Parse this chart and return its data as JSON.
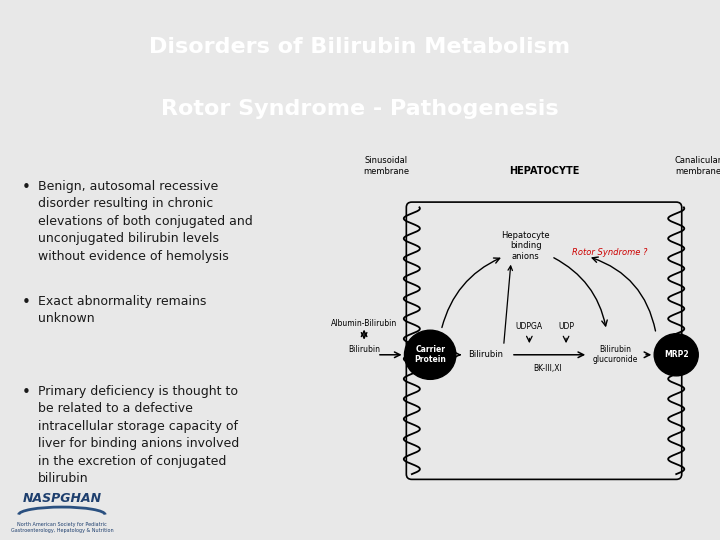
{
  "title_line1": "Disorders of Bilirubin Metabolism",
  "title_line2": "Rotor Syndrome - Pathogenesis",
  "title_bg_color": "#4a6b8a",
  "title_text_color": "#ffffff",
  "slide_bg_color": "#e8e8e8",
  "bullet_points": [
    "Benign, autosomal recessive\ndisorder resulting in chronic\nelevations of both conjugated and\nunconjugated bilirubin levels\nwithout evidence of hemolysis",
    "Exact abnormality remains\nunknown",
    "Primary deficiency is thought to\nbe related to a defective\nintracellular storage capacity of\nliver for binding anions involved\nin the excretion of conjugated\nbilirubin"
  ],
  "diagram": {
    "sinusoidal_label": "Sinusoidal\nmembrane",
    "hepatocyte_label": "HEPATOCYTE",
    "canalicular_label": "Canalicular\nmembrane",
    "albumin_bilirubin": "Albumin-Bilirubin",
    "bilirubin_label": "Bilirubin",
    "carrier_protein": "Carrier\nProtein",
    "bilirubin2": "Bilirubin",
    "udpga_label": "UDPGA",
    "udp_label": "UDP",
    "bk_label": "BK-III,XI",
    "bilirubin_glucuronide": "Bilirubin\nglucuronide",
    "mrp2_label": "MRP2",
    "hepatocyte_binding": "Hepatocyte\nbinding\nanions",
    "rotor_syndrome": "Rotor Syndrome ?",
    "rotor_color": "#cc0000"
  },
  "naspghan_text": "NASPGHAN",
  "text_color": "#1a1a1a",
  "bullet_color": "#1a1a1a"
}
